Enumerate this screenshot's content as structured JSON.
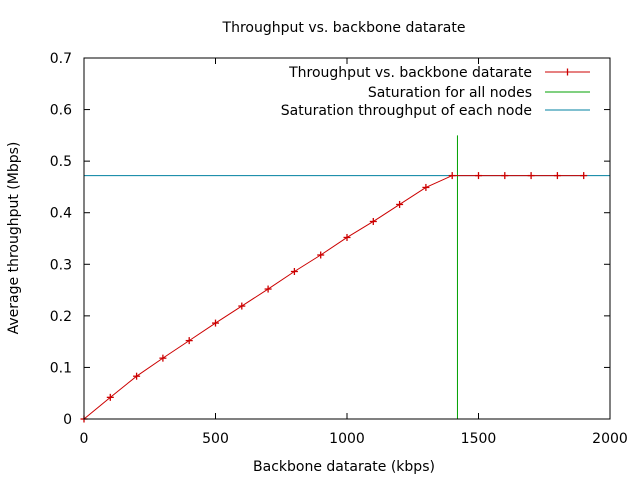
{
  "chart_data": {
    "type": "line",
    "title": "Throughput vs. backbone datarate",
    "xlabel": "Backbone datarate (kbps)",
    "ylabel": "Average throughput (Mbps)",
    "xlim": [
      0,
      2000
    ],
    "ylim": [
      0,
      0.7
    ],
    "x_ticks": [
      0,
      500,
      1000,
      1500,
      2000
    ],
    "y_ticks": [
      0,
      0.1,
      0.2,
      0.3,
      0.4,
      0.5,
      0.6,
      0.7
    ],
    "x_tick_labels": [
      "0",
      "500",
      "1000",
      "1500",
      "2000"
    ],
    "y_tick_labels": [
      "0",
      "0.1",
      "0.2",
      "0.3",
      "0.4",
      "0.5",
      "0.6",
      "0.7"
    ],
    "grid": false,
    "legend_position": "top-right",
    "series": [
      {
        "name": "Throughput vs. backbone datarate",
        "kind": "line-with-markers",
        "marker": "plus",
        "color": "#cc0000",
        "x": [
          0,
          100,
          200,
          300,
          400,
          500,
          600,
          700,
          800,
          900,
          1000,
          1100,
          1200,
          1300,
          1400,
          1500,
          1600,
          1700,
          1800,
          1900
        ],
        "y": [
          0,
          0.042,
          0.083,
          0.118,
          0.152,
          0.186,
          0.219,
          0.252,
          0.286,
          0.318,
          0.352,
          0.383,
          0.416,
          0.449,
          0.472,
          0.472,
          0.472,
          0.472,
          0.472,
          0.472
        ]
      },
      {
        "name": "Saturation for all nodes",
        "kind": "vertical-line",
        "color": "#00a000",
        "x": 1420,
        "y_range": [
          0,
          0.55
        ]
      },
      {
        "name": "Saturation throughput of each node",
        "kind": "horizontal-line",
        "color": "#0080a0",
        "y": 0.472
      }
    ]
  }
}
